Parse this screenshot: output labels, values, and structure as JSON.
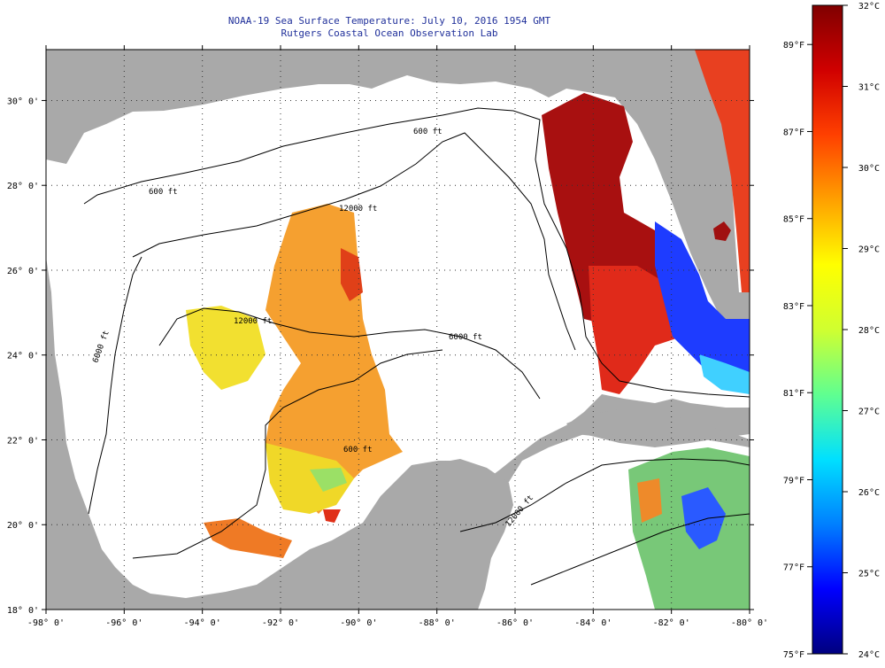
{
  "title": "NOAA-19 Sea Surface Temperature:  July 10, 2016 1954 GMT",
  "subtitle": "Rutgers Coastal Ocean Observation Lab",
  "axes": {
    "lat_labels": [
      "30° 0'",
      "28° 0'",
      "26° 0'",
      "24° 0'",
      "22° 0'",
      "20° 0'",
      "18° 0'"
    ],
    "lat_values": [
      30,
      28,
      26,
      24,
      22,
      20,
      18
    ],
    "lon_labels": [
      "-98° 0'",
      "-96° 0'",
      "-94° 0'",
      "-92° 0'",
      "-90° 0'",
      "-88° 0'",
      "-86° 0'",
      "-84° 0'",
      "-82° 0'",
      "-80° 0'"
    ],
    "lon_values": [
      -98,
      -96,
      -94,
      -92,
      -90,
      -88,
      -86,
      -84,
      -82,
      -80
    ]
  },
  "contours": {
    "labels": [
      "600 ft",
      "600 ft",
      "12000 ft",
      "12000 ft",
      "6000 ft",
      "600 ft",
      "6000 ft",
      "12000 ft"
    ]
  },
  "colorbar": {
    "f_labels": [
      "89°F",
      "87°F",
      "85°F",
      "83°F",
      "81°F",
      "79°F",
      "77°F",
      "75°F"
    ],
    "f_values": [
      89,
      87,
      85,
      83,
      81,
      79,
      77,
      75
    ],
    "c_labels": [
      "32°C",
      "31°C",
      "30°C",
      "29°C",
      "28°C",
      "27°C",
      "26°C",
      "25°C",
      "24°C"
    ],
    "c_values": [
      32,
      31,
      30,
      29,
      28,
      27,
      26,
      25,
      24
    ],
    "colors": [
      "#00007f",
      "#0000ff",
      "#0080ff",
      "#00e0ff",
      "#60ff90",
      "#d0ff30",
      "#ffff00",
      "#ffa000",
      "#ff4000",
      "#d00000",
      "#800000"
    ]
  },
  "colors": {
    "land": "#a9a9a9",
    "ocean_no_data": "#ffffff",
    "title": "#1f2f9a"
  }
}
